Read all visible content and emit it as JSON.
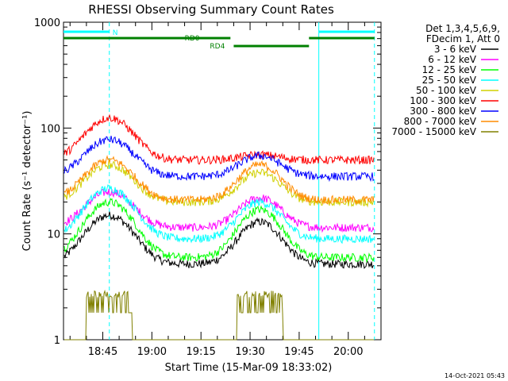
{
  "chart_data": {
    "type": "line",
    "title": "RHESSI Observing Summary Count Rates",
    "xlabel": "Start Time (15-Mar-09 18:33:02)",
    "ylabel": "Count Rate (s⁻¹ detector⁻¹)",
    "yscale": "log",
    "ylim": [
      1,
      1000
    ],
    "xlim": [
      "18:33",
      "20:10"
    ],
    "x_ticks": [
      "18:45",
      "19:00",
      "19:15",
      "19:30",
      "19:45",
      "20:00"
    ],
    "y_ticks": [
      "1",
      "10",
      "100",
      "1000"
    ],
    "footer_date": "14-Oct-2021 05:43",
    "legend_header": [
      "Det 1,3,4,5,6,9,",
      "FDecim 1, Att 0"
    ],
    "legend_position": "right",
    "series": [
      {
        "name": "3 - 6 keV",
        "color": "#000000",
        "baseline": 5.2,
        "peaks": [
          {
            "x": "18:47",
            "value": 15
          },
          {
            "x": "19:33",
            "value": 13
          }
        ]
      },
      {
        "name": "6 - 12 keV",
        "color": "#ff00ff",
        "baseline": 11.5,
        "peaks": [
          {
            "x": "18:47",
            "value": 25
          },
          {
            "x": "19:33",
            "value": 22
          }
        ]
      },
      {
        "name": "12 - 25 keV",
        "color": "#00ff00",
        "baseline": 6.0,
        "peaks": [
          {
            "x": "18:47",
            "value": 20
          },
          {
            "x": "19:33",
            "value": 17
          }
        ]
      },
      {
        "name": "25 - 50 keV",
        "color": "#00ffff",
        "baseline": 9.0,
        "peaks": [
          {
            "x": "18:47",
            "value": 27
          },
          {
            "x": "19:33",
            "value": 20
          }
        ]
      },
      {
        "name": "50 - 100 keV",
        "color": "#d0d000",
        "baseline": 20.0,
        "peaks": [
          {
            "x": "18:47",
            "value": 45
          },
          {
            "x": "19:33",
            "value": 38
          }
        ]
      },
      {
        "name": "100 - 300 keV",
        "color": "#ff0000",
        "baseline": 50.0,
        "peaks": [
          {
            "x": "18:47",
            "value": 125
          },
          {
            "x": "19:33",
            "value": 56
          }
        ]
      },
      {
        "name": "300 - 800 keV",
        "color": "#0000ff",
        "baseline": 35.0,
        "peaks": [
          {
            "x": "18:47",
            "value": 78
          },
          {
            "x": "19:33",
            "value": 55
          }
        ]
      },
      {
        "name": "800 - 7000 keV",
        "color": "#ff8c00",
        "baseline": 21.0,
        "peaks": [
          {
            "x": "18:47",
            "value": 50
          },
          {
            "x": "19:33",
            "value": 45
          }
        ]
      },
      {
        "name": "7000 - 15000 keV",
        "color": "#808000",
        "baseline": 1.0,
        "peaks": [
          {
            "x": "18:47",
            "value": 2.5
          },
          {
            "x": "19:33",
            "value": 2.5
          }
        ]
      }
    ],
    "vertical_lines": [
      {
        "x": "18:47",
        "style": "dashed",
        "color": "#00ffff"
      },
      {
        "x": "19:51",
        "style": "solid",
        "color": "#00ffff"
      },
      {
        "x": "20:08",
        "style": "dashed",
        "color": "#00ffff"
      }
    ],
    "flag_bars": [
      {
        "label": "N",
        "color": "#00ffff",
        "segments": [
          [
            "18:33",
            "18:47"
          ],
          [
            "19:51",
            "20:08"
          ]
        ]
      },
      {
        "label": "RD0",
        "color": "#008000",
        "segments": [
          [
            "18:33",
            "19:24"
          ],
          [
            "19:48",
            "20:08"
          ]
        ]
      },
      {
        "label": "RD4",
        "color": "#008000",
        "segments": [
          [
            "19:25",
            "19:48"
          ]
        ]
      }
    ]
  }
}
